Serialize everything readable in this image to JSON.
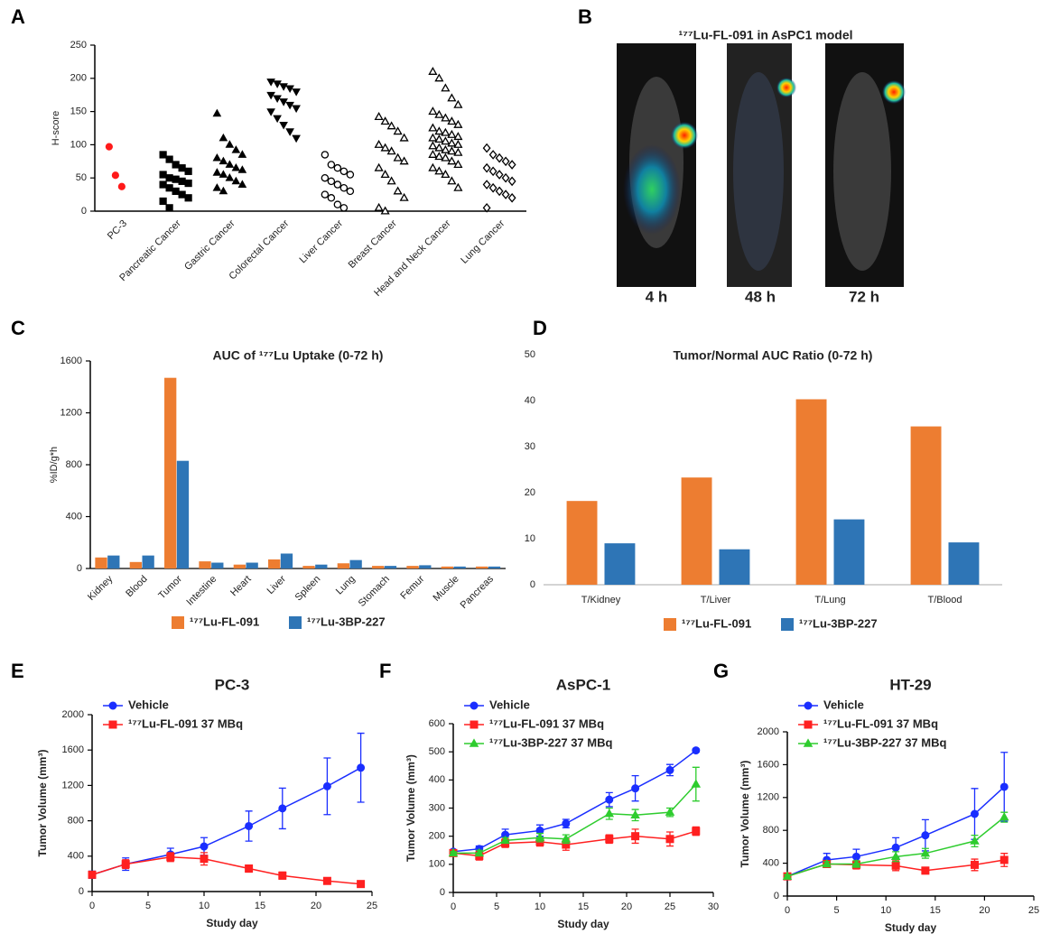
{
  "chart_data": [
    {
      "type": "strip",
      "panel": "A",
      "y_label": "H-score",
      "categories": [
        "PC-3",
        "Pancreatic Cancer",
        "Gastric Cancer",
        "Colorectal Cancer",
        "Liver Cancer",
        "Breast Cancer",
        "Head and Neck Cancer",
        "Lung Cancer"
      ],
      "markers": [
        "circle",
        "square",
        "triangle",
        "triangle-down",
        "circle-open",
        "triangle-open",
        "triangle-open",
        "diamond-open"
      ],
      "colors": [
        "#ff1a1a",
        "#000000",
        "#000000",
        "#000000",
        "#000000",
        "#000000",
        "#000000",
        "#000000"
      ],
      "values": [
        [
          97,
          54,
          37
        ],
        [
          85,
          78,
          70,
          65,
          60,
          55,
          50,
          48,
          45,
          42,
          40,
          35,
          30,
          25,
          20,
          15,
          5
        ],
        [
          147,
          110,
          100,
          92,
          85,
          80,
          75,
          70,
          65,
          62,
          58,
          55,
          50,
          45,
          40,
          35,
          30
        ],
        [
          195,
          192,
          188,
          185,
          180,
          175,
          170,
          165,
          160,
          155,
          150,
          140,
          130,
          120,
          110
        ],
        [
          85,
          70,
          65,
          60,
          55,
          50,
          45,
          40,
          35,
          30,
          25,
          20,
          10,
          5
        ],
        [
          142,
          135,
          128,
          120,
          110,
          100,
          95,
          90,
          80,
          75,
          65,
          55,
          45,
          30,
          20,
          5,
          0
        ],
        [
          210,
          200,
          185,
          170,
          160,
          150,
          145,
          140,
          135,
          130,
          125,
          120,
          118,
          115,
          112,
          110,
          108,
          105,
          102,
          100,
          98,
          95,
          92,
          90,
          88,
          85,
          82,
          80,
          75,
          70,
          65,
          60,
          55,
          45,
          35
        ],
        [
          95,
          85,
          80,
          75,
          70,
          65,
          60,
          55,
          50,
          45,
          40,
          35,
          30,
          25,
          20,
          5
        ]
      ],
      "ylim": [
        0,
        250
      ],
      "yticks": [
        0,
        50,
        100,
        150,
        200,
        250
      ]
    },
    {
      "type": "bar",
      "panel": "C",
      "title": "AUC of ¹⁷⁷Lu Uptake (0-72 h)",
      "y_label": "%ID/g*h",
      "categories": [
        "Kidney",
        "Blood",
        "Tumor",
        "Intestine",
        "Heart",
        "Liver",
        "Spleen",
        "Lung",
        "Stomach",
        "Femur",
        "Muscle",
        "Pancreas"
      ],
      "series": [
        {
          "name": "¹⁷⁷Lu-FL-091",
          "color": "#ed7d31",
          "values": [
            85,
            50,
            1470,
            55,
            30,
            70,
            20,
            40,
            20,
            20,
            15,
            15
          ]
        },
        {
          "name": "¹⁷⁷Lu-3BP-227",
          "color": "#2e75b6",
          "values": [
            100,
            100,
            830,
            45,
            45,
            115,
            30,
            65,
            20,
            25,
            15,
            15
          ]
        }
      ],
      "ylim": [
        0,
        1600
      ],
      "yticks": [
        0,
        400,
        800,
        1200,
        1600
      ]
    },
    {
      "type": "bar",
      "panel": "D",
      "title": "Tumor/Normal AUC Ratio (0-72 h)",
      "categories": [
        "T/Kidney",
        "T/Liver",
        "T/Lung",
        "T/Blood"
      ],
      "series": [
        {
          "name": "¹⁷⁷Lu-FL-091",
          "color": "#ed7d31",
          "values": [
            18.2,
            23.3,
            40.3,
            34.4
          ]
        },
        {
          "name": "¹⁷⁷Lu-3BP-227",
          "color": "#2e75b6",
          "values": [
            9,
            7.7,
            14.2,
            9.2
          ]
        }
      ],
      "ylim": [
        0,
        50
      ],
      "yticks": [
        0,
        10,
        20,
        30,
        40,
        50
      ]
    },
    {
      "type": "line",
      "panel": "E",
      "title": "PC-3",
      "x_label": "Study day",
      "y_label": "Tumor Volume (mm³)",
      "x": [
        0,
        3,
        7,
        10,
        14,
        17,
        21,
        24
      ],
      "series": [
        {
          "name": "Vehicle",
          "color": "#1a2eff",
          "marker": "circle",
          "values": [
            190,
            310,
            420,
            510,
            740,
            940,
            1190,
            1400
          ],
          "errors": [
            40,
            70,
            70,
            100,
            170,
            230,
            320,
            390
          ]
        },
        {
          "name": "¹⁷⁷Lu-FL-091 37 MBq",
          "color": "#ff2020",
          "marker": "square",
          "values": [
            190,
            310,
            390,
            370,
            260,
            180,
            120,
            85
          ],
          "errors": [
            30,
            50,
            50,
            70,
            40,
            40,
            20,
            15
          ]
        }
      ],
      "xlim": [
        0,
        25
      ],
      "xticks": [
        0,
        5,
        10,
        15,
        20,
        25
      ],
      "ylim": [
        0,
        2000
      ],
      "yticks": [
        0,
        400,
        800,
        1200,
        1600,
        2000
      ]
    },
    {
      "type": "line",
      "panel": "F",
      "title": "AsPC-1",
      "x_label": "Study day",
      "y_label": "Tumor Volume (mm³)",
      "x": [
        0,
        3,
        6,
        10,
        13,
        18,
        21,
        25,
        28
      ],
      "series": [
        {
          "name": "Vehicle",
          "color": "#1a2eff",
          "marker": "circle",
          "values": [
            145,
            155,
            205,
            220,
            245,
            330,
            370,
            435,
            505
          ],
          "errors": [
            5,
            10,
            20,
            20,
            15,
            25,
            45,
            20,
            5
          ]
        },
        {
          "name": "¹⁷⁷Lu-FL-091 37 MBq",
          "color": "#ff2020",
          "marker": "square",
          "values": [
            140,
            130,
            175,
            180,
            170,
            190,
            200,
            190,
            218
          ],
          "errors": [
            5,
            15,
            15,
            15,
            20,
            15,
            25,
            25,
            15
          ]
        },
        {
          "name": "¹⁷⁷Lu-3BP-227 37 MBq",
          "color": "#2ecc2e",
          "marker": "triangle",
          "values": [
            140,
            140,
            185,
            195,
            190,
            280,
            275,
            285,
            385
          ],
          "errors": [
            5,
            10,
            10,
            15,
            15,
            20,
            20,
            15,
            60
          ]
        }
      ],
      "xlim": [
        0,
        30
      ],
      "xticks": [
        0,
        5,
        10,
        15,
        20,
        25,
        30
      ],
      "ylim": [
        0,
        600
      ],
      "yticks": [
        0,
        100,
        200,
        300,
        400,
        500,
        600
      ]
    },
    {
      "type": "line",
      "panel": "G",
      "title": "HT-29",
      "x_label": "Study day",
      "y_label": "Tumor Volume (mm³)",
      "x": [
        0,
        4,
        7,
        11,
        14,
        19,
        22
      ],
      "series": [
        {
          "name": "Vehicle",
          "color": "#1a2eff",
          "marker": "circle",
          "values": [
            240,
            440,
            480,
            590,
            740,
            1000,
            1330
          ],
          "errors": [
            30,
            80,
            90,
            120,
            190,
            310,
            420
          ]
        },
        {
          "name": "¹⁷⁷Lu-FL-091 37 MBq",
          "color": "#ff2020",
          "marker": "square",
          "values": [
            240,
            390,
            380,
            370,
            310,
            380,
            440
          ],
          "errors": [
            20,
            40,
            50,
            60,
            40,
            70,
            80
          ]
        },
        {
          "name": "¹⁷⁷Lu-3BP-227 37 MBq",
          "color": "#2ecc2e",
          "marker": "triangle",
          "values": [
            240,
            390,
            390,
            480,
            520,
            670,
            960
          ],
          "errors": [
            20,
            30,
            40,
            60,
            60,
            70,
            60
          ]
        }
      ],
      "xlim": [
        0,
        25
      ],
      "xticks": [
        0,
        5,
        10,
        15,
        20,
        25
      ],
      "ylim": [
        0,
        2000
      ],
      "yticks": [
        0,
        400,
        800,
        1200,
        1600,
        2000
      ]
    }
  ],
  "image_panel": {
    "panel": "B",
    "title": "¹⁷⁷Lu-FL-091 in AsPC1 model",
    "captions": [
      "4 h",
      "48 h",
      "72 h"
    ]
  }
}
